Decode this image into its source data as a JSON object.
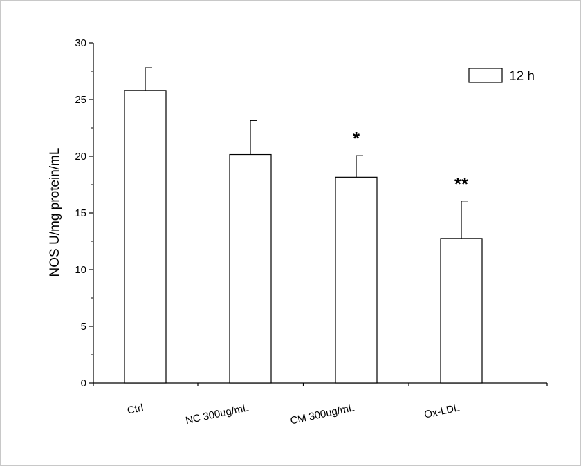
{
  "chart_data": {
    "type": "bar",
    "categories": [
      "Ctrl",
      "NC 300ug/mL",
      "CM 300ug/mL",
      "Ox-LDL"
    ],
    "series": [
      {
        "name": "12 h",
        "values": [
          25.8,
          20.15,
          18.15,
          12.75
        ],
        "error_plus": [
          2.0,
          3.0,
          1.9,
          3.3
        ],
        "color": "#ffffff",
        "edge_color": "#000000"
      }
    ],
    "significance": [
      "",
      "",
      "*",
      "**"
    ],
    "xlabel": "",
    "ylabel": "NOS U/mg protein/mL",
    "ylim": [
      0,
      30
    ],
    "yticks": [
      0,
      5,
      10,
      15,
      20,
      25,
      30
    ],
    "grid": false,
    "legend_position": "top-right"
  }
}
